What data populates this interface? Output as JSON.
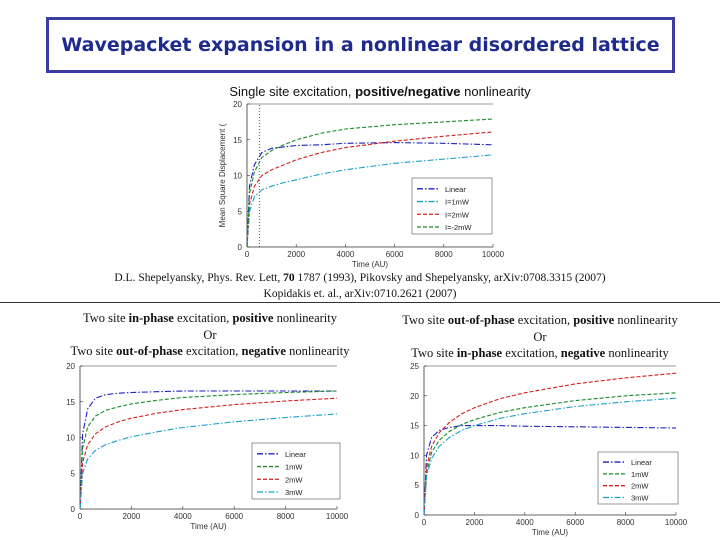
{
  "header": {
    "title": "Wavepacket expansion in a nonlinear disordered lattice"
  },
  "top_panel": {
    "subtitle_prefix": "Single site excitation, ",
    "subtitle_bold": "positive/negative",
    "subtitle_suffix": " nonlinearity"
  },
  "references": {
    "line1_a": "D.L. Shepelyansky, Phys. Rev. Lett, ",
    "line1_bold": "70",
    "line1_b": " 1787 (1993), Pikovsky and Shepelyansky, arXiv:0708.3315 (2007)",
    "line2": "Kopidakis  et. al.,  arXiv:0710.2621 (2007)"
  },
  "left_caption": {
    "l1_a": "Two site ",
    "l1_b": "in-phase",
    "l1_c": " excitation, ",
    "l1_d": "positive",
    "l1_e": " nonlinearity",
    "l2": "Or",
    "l3_a": "Two site ",
    "l3_b": "out-of-phase",
    "l3_c": " excitation, ",
    "l3_d": "negative",
    "l3_e": " nonlinearity"
  },
  "right_caption": {
    "l1_a": "Two site ",
    "l1_b": "out-of-phase",
    "l1_c": " excitation, ",
    "l1_d": "positive",
    "l1_e": " nonlinearity",
    "l2": "Or",
    "l3_a": "Two site ",
    "l3_b": "in-phase",
    "l3_c": " excitation, ",
    "l3_d": "negative",
    "l3_e": " nonlinearity"
  },
  "chart_data": [
    {
      "id": "top",
      "type": "line",
      "title": "Single site excitation, positive/negative nonlinearity",
      "xlabel": "Time (AU)",
      "ylabel": "Mean Square Displacement (",
      "xlim": [
        0,
        10000
      ],
      "ylim": [
        0,
        20
      ],
      "xticks": [
        "0",
        "2000",
        "4000",
        "6000",
        "8000",
        "10000"
      ],
      "yticks": [
        "0",
        "5",
        "10",
        "15",
        "20"
      ],
      "dotted_vline_x": 500,
      "legend_position": "lower-right",
      "series": [
        {
          "name": "Linear",
          "color": "#1f1fbf",
          "style": "dashdot",
          "x": [
            0,
            100,
            300,
            600,
            1000,
            1500,
            2000,
            3000,
            4000,
            6000,
            8000,
            10000
          ],
          "values": [
            0,
            8.5,
            11.5,
            13.2,
            13.8,
            14.0,
            14.2,
            14.3,
            14.5,
            14.6,
            14.5,
            14.3
          ]
        },
        {
          "name": "I=1mW",
          "color": "#1aa0c8",
          "style": "dashdot",
          "x": [
            0,
            100,
            300,
            600,
            1000,
            1500,
            2000,
            3000,
            4000,
            6000,
            8000,
            10000
          ],
          "values": [
            0,
            5.0,
            7.0,
            8.0,
            8.5,
            9.0,
            9.4,
            10.2,
            10.8,
            11.7,
            12.3,
            12.9
          ]
        },
        {
          "name": "I=2mW",
          "color": "#d22020",
          "style": "dashed",
          "x": [
            0,
            100,
            300,
            600,
            1000,
            1500,
            2000,
            3000,
            4000,
            6000,
            8000,
            10000
          ],
          "values": [
            0,
            6.0,
            8.5,
            10.0,
            10.8,
            11.5,
            12.2,
            13.2,
            13.9,
            14.8,
            15.5,
            16.1
          ]
        },
        {
          "name": "I=-2mW",
          "color": "#1a8c2a",
          "style": "dashed",
          "x": [
            0,
            100,
            300,
            600,
            1000,
            1500,
            2000,
            3000,
            4000,
            6000,
            8000,
            10000
          ],
          "values": [
            0,
            7.5,
            10.5,
            12.5,
            13.5,
            14.3,
            15.0,
            15.9,
            16.5,
            17.1,
            17.5,
            17.9
          ]
        }
      ]
    },
    {
      "id": "bottom-left",
      "type": "line",
      "xlabel": "Time (AU)",
      "ylabel": "",
      "xlim": [
        0,
        10000
      ],
      "ylim": [
        0,
        20
      ],
      "xticks": [
        "0",
        "2000",
        "4000",
        "6000",
        "8000",
        "10000"
      ],
      "yticks": [
        "0",
        "5",
        "10",
        "15",
        "20"
      ],
      "legend_position": "lower-right",
      "series": [
        {
          "name": "Linear",
          "color": "#1f1fbf",
          "style": "dashdot",
          "x": [
            0,
            100,
            300,
            600,
            1000,
            1500,
            2000,
            3000,
            4000,
            6000,
            8000,
            10000
          ],
          "values": [
            0,
            10.5,
            14.0,
            15.5,
            16.0,
            16.2,
            16.3,
            16.4,
            16.5,
            16.5,
            16.5,
            16.5
          ]
        },
        {
          "name": "1mW",
          "color": "#1a8c2a",
          "style": "dashed",
          "x": [
            0,
            100,
            300,
            600,
            1000,
            1500,
            2000,
            3000,
            4000,
            6000,
            8000,
            10000
          ],
          "values": [
            0,
            8.5,
            11.5,
            13.0,
            13.8,
            14.3,
            14.7,
            15.2,
            15.6,
            16.0,
            16.3,
            16.5
          ]
        },
        {
          "name": "2mW",
          "color": "#d22020",
          "style": "dashed",
          "x": [
            0,
            100,
            300,
            600,
            1000,
            1500,
            2000,
            3000,
            4000,
            6000,
            8000,
            10000
          ],
          "values": [
            0,
            6.5,
            9.0,
            10.5,
            11.5,
            12.2,
            12.7,
            13.4,
            13.9,
            14.6,
            15.1,
            15.5
          ]
        },
        {
          "name": "3mW",
          "color": "#1aa0c8",
          "style": "dashdot",
          "x": [
            0,
            100,
            300,
            600,
            1000,
            1500,
            2000,
            3000,
            4000,
            6000,
            8000,
            10000
          ],
          "values": [
            0,
            5.0,
            7.0,
            8.2,
            9.0,
            9.6,
            10.1,
            10.8,
            11.4,
            12.2,
            12.8,
            13.3
          ]
        }
      ]
    },
    {
      "id": "bottom-right",
      "type": "line",
      "xlabel": "Time (AU)",
      "ylabel": "",
      "xlim": [
        0,
        10000
      ],
      "ylim": [
        0,
        25
      ],
      "xticks": [
        "0",
        "2000",
        "4000",
        "6000",
        "8000",
        "10000"
      ],
      "yticks": [
        "0",
        "5",
        "10",
        "15",
        "20",
        "25"
      ],
      "legend_position": "lower-right",
      "series": [
        {
          "name": "Linear",
          "color": "#1f1fbf",
          "style": "dashdot",
          "x": [
            0,
            100,
            300,
            600,
            1000,
            1500,
            2000,
            3000,
            4000,
            6000,
            8000,
            10000
          ],
          "values": [
            0,
            10.0,
            13.0,
            14.2,
            14.7,
            15.0,
            15.0,
            15.0,
            14.9,
            14.8,
            14.7,
            14.6
          ]
        },
        {
          "name": "1mW",
          "color": "#1a8c2a",
          "style": "dashed",
          "x": [
            0,
            100,
            300,
            600,
            1000,
            1500,
            2000,
            3000,
            4000,
            6000,
            8000,
            10000
          ],
          "values": [
            0,
            7.0,
            10.5,
            12.5,
            14.0,
            15.2,
            16.0,
            17.2,
            18.0,
            19.2,
            20.0,
            20.5
          ]
        },
        {
          "name": "2mW",
          "color": "#d22020",
          "style": "dashed",
          "x": [
            0,
            100,
            300,
            600,
            1000,
            1500,
            2000,
            3000,
            4000,
            6000,
            8000,
            10000
          ],
          "values": [
            0,
            8.0,
            11.5,
            13.8,
            15.5,
            17.0,
            18.0,
            19.5,
            20.5,
            22.0,
            23.0,
            23.8
          ]
        },
        {
          "name": "3mW",
          "color": "#1aa0c8",
          "style": "dashdot",
          "x": [
            0,
            100,
            300,
            600,
            1000,
            1500,
            2000,
            3000,
            4000,
            6000,
            8000,
            10000
          ],
          "values": [
            0,
            6.5,
            9.5,
            11.5,
            13.0,
            14.2,
            15.0,
            16.2,
            17.0,
            18.2,
            19.0,
            19.6
          ]
        }
      ]
    }
  ]
}
